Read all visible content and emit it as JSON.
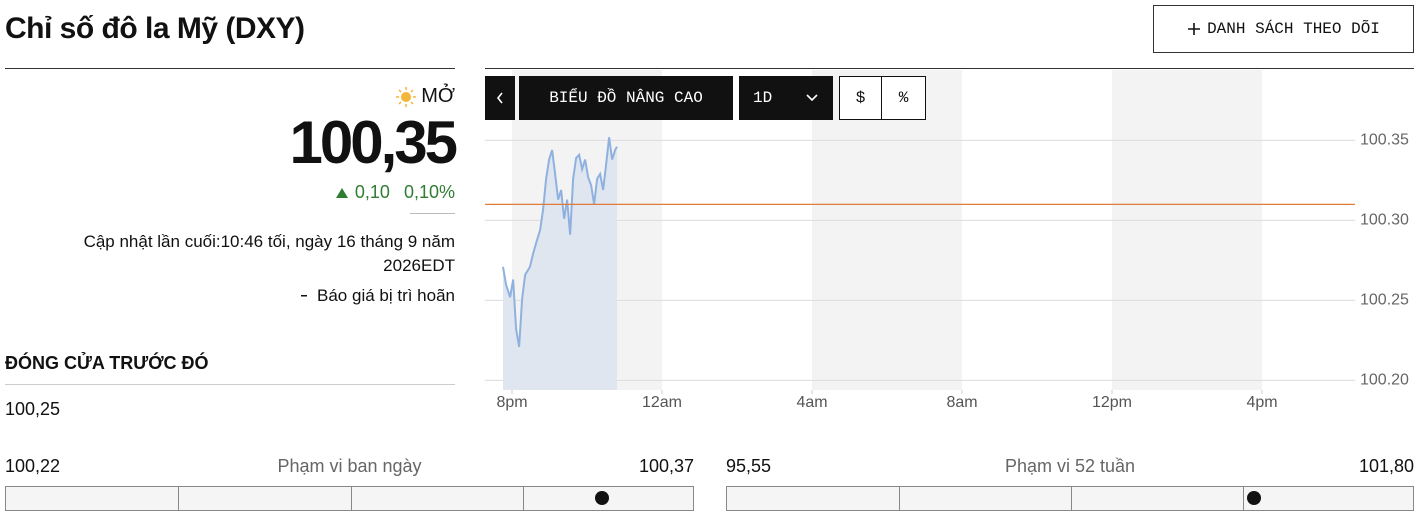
{
  "header": {
    "title": "Chỉ số đô la Mỹ (DXY)",
    "watchlist_button": "DANH SÁCH THEO DÕI"
  },
  "quote": {
    "status": "MỞ",
    "price": {
      "value": 100.35,
      "label": "100,35"
    },
    "change": "0,10",
    "change_percent": "0,10%",
    "last_updated": "Cập nhật lần cuối:10:46 tối, ngày 16 tháng 9 năm 2026EDT",
    "delay_note": "Báo giá bị trì hoãn",
    "previous_close_label": "ĐÓNG CỬA TRƯỚC ĐÓ",
    "previous_close": "100,25"
  },
  "toolbar": {
    "advanced_chart": "BIỂU ĐỒ NÂNG CAO",
    "interval": "1D",
    "dollar": "$",
    "percent": "%"
  },
  "ranges": [
    {
      "label": "Phạm vi ban ngày",
      "low": {
        "value": 100.22,
        "label": "100,22"
      },
      "high": {
        "value": 100.37,
        "label": "100,37"
      }
    },
    {
      "label": "Phạm vi 52 tuần",
      "low": {
        "value": 95.55,
        "label": "95,55"
      },
      "high": {
        "value": 101.8,
        "label": "101,80"
      }
    }
  ],
  "chart_data": {
    "type": "line",
    "x": [
      19.76,
      19.84,
      19.95,
      20.03,
      20.11,
      20.19,
      20.27,
      20.35,
      20.48,
      20.56,
      20.67,
      20.75,
      20.83,
      20.91,
      20.99,
      21.07,
      21.15,
      21.23,
      21.31,
      21.39,
      21.47,
      21.55,
      21.63,
      21.71,
      21.79,
      21.87,
      21.95,
      22.03,
      22.11,
      22.19,
      22.27,
      22.35,
      22.43,
      22.51,
      22.59,
      22.67,
      22.75,
      22.8
    ],
    "values": [
      100.271,
      100.26,
      100.252,
      100.263,
      100.232,
      100.221,
      100.251,
      100.266,
      100.271,
      100.279,
      100.288,
      100.294,
      100.307,
      100.326,
      100.338,
      100.344,
      100.329,
      100.313,
      100.319,
      100.301,
      100.313,
      100.291,
      100.326,
      100.339,
      100.341,
      100.332,
      100.338,
      100.327,
      100.322,
      100.31,
      100.326,
      100.329,
      100.319,
      100.335,
      100.352,
      100.338,
      100.344,
      100.346
    ],
    "color": "#8fb1df",
    "fill_color": "#dfe6ef",
    "reference_line": 100.31,
    "reference_color": "#e07b39",
    "xlim": [
      19.28,
      42.48
    ],
    "xticks": [
      {
        "value": 20,
        "label": "8pm"
      },
      {
        "value": 24,
        "label": "12am"
      },
      {
        "value": 28,
        "label": "4am"
      },
      {
        "value": 32,
        "label": "8am"
      },
      {
        "value": 36,
        "label": "12pm"
      },
      {
        "value": 40,
        "label": "4pm"
      }
    ],
    "ylim": [
      100.194,
      100.394
    ],
    "yticks": [
      {
        "value": 100.2,
        "label": "100.20"
      },
      100.25,
      {
        "value": 100.3,
        "label": "100.30"
      },
      100.35
    ],
    "grid": true
  }
}
